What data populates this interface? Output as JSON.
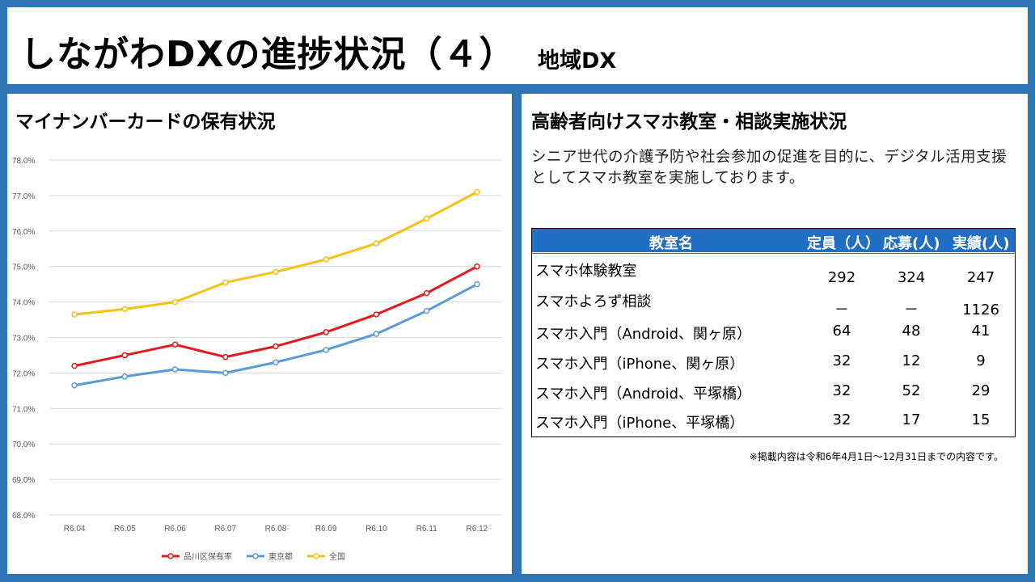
{
  "title": {
    "main": "しながわDXの進捗状況（４）",
    "sub": "地域DX"
  },
  "left_panel": {
    "heading": "マイナンバーカードの保有状況"
  },
  "right_panel": {
    "heading": "高齢者向けスマホ教室・相談実施状況",
    "description": "シニア世代の介護予防や社会参加の促進を目的に、デジタル活用支援としてスマホ教室を実施しております。",
    "table": {
      "headers": [
        "教室名",
        "定員（人）",
        "応募(人)",
        "実績(人)"
      ],
      "rows": [
        {
          "name": "スマホ体験教室",
          "capacity": "292",
          "applied": "324",
          "actual": "247"
        },
        {
          "name": "スマホよろず相談",
          "capacity": "－",
          "applied": "－",
          "actual": "1126"
        },
        {
          "name": "スマホ入門（Android、関ヶ原）",
          "capacity": "64",
          "applied": "48",
          "actual": "41"
        },
        {
          "name": "スマホ入門（iPhone、関ヶ原）",
          "capacity": "32",
          "applied": "12",
          "actual": "9"
        },
        {
          "name": "スマホ入門（Android、平塚橋）",
          "capacity": "32",
          "applied": "52",
          "actual": "29"
        },
        {
          "name": "スマホ入門（iPhone、平塚橋）",
          "capacity": "32",
          "applied": "17",
          "actual": "15"
        }
      ]
    },
    "note": "※掲載内容は令和6年4月1日～12月31日までの内容です。"
  },
  "chart_data": {
    "type": "line",
    "title": "マイナンバーカードの保有状況",
    "categories": [
      "R6.04",
      "R6.05",
      "R6.06",
      "R6.07",
      "R6.08",
      "R6.09",
      "R6.10",
      "R6.11",
      "R6.12"
    ],
    "ylim": [
      68.0,
      78.0
    ],
    "yticks": [
      "68.0%",
      "69.0%",
      "70.0%",
      "71.0%",
      "72.0%",
      "73.0%",
      "74.0%",
      "75.0%",
      "76.0%",
      "77.0%",
      "78.0%"
    ],
    "grid": true,
    "legend_position": "bottom",
    "series": [
      {
        "name": "品川区保有率",
        "color": "#e31a1c",
        "values": [
          72.2,
          72.5,
          72.8,
          72.45,
          72.75,
          73.15,
          73.65,
          74.25,
          75.0
        ]
      },
      {
        "name": "東京都",
        "color": "#5b9bd5",
        "values": [
          71.65,
          71.9,
          72.1,
          72.0,
          72.3,
          72.65,
          73.1,
          73.75,
          74.5
        ]
      },
      {
        "name": "全国",
        "color": "#f5c211",
        "values": [
          73.65,
          73.8,
          74.0,
          74.55,
          74.85,
          75.2,
          75.65,
          76.35,
          77.1
        ]
      }
    ]
  }
}
